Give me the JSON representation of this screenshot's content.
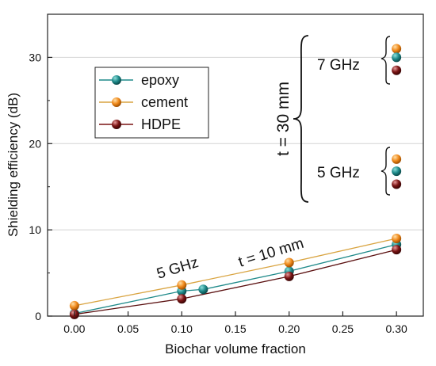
{
  "chart_data": {
    "type": "scatter",
    "title": "",
    "xlabel": "Biochar volume fraction",
    "ylabel": "Shielding efficiency (dB)",
    "xlim": [
      -0.025,
      0.325
    ],
    "ylim": [
      0,
      35
    ],
    "x_ticks": [
      "0.00",
      "0.05",
      "0.10",
      "0.15",
      "0.20",
      "0.25",
      "0.30"
    ],
    "x_tick_values": [
      0,
      0.05,
      0.1,
      0.15,
      0.2,
      0.25,
      0.3
    ],
    "y_ticks": [
      "0",
      "10",
      "20",
      "30"
    ],
    "y_tick_values": [
      0,
      10,
      20,
      30
    ],
    "grid": "horizontal",
    "legend_position": "top-left",
    "series": [
      {
        "name": "epoxy",
        "color": "#1f8a8a",
        "x": [
          0.0,
          0.1,
          0.12,
          0.2,
          0.3
        ],
        "y": [
          0.3,
          2.9,
          3.1,
          5.2,
          8.3
        ]
      },
      {
        "name": "cement",
        "color": "#f08a1c",
        "x": [
          0.0,
          0.1,
          0.2,
          0.3
        ],
        "y": [
          1.2,
          3.6,
          6.2,
          9.0
        ]
      },
      {
        "name": "HDPE",
        "color": "#7a1414",
        "x": [
          0.0,
          0.1,
          0.2,
          0.3
        ],
        "y": [
          0.2,
          2.0,
          4.6,
          7.7
        ]
      }
    ],
    "side_markers": [
      {
        "group": "7 GHz",
        "values": [
          {
            "series": "cement",
            "y": 31.0
          },
          {
            "series": "epoxy",
            "y": 30.0
          },
          {
            "series": "HDPE",
            "y": 28.5
          }
        ]
      },
      {
        "group": "5 GHz",
        "values": [
          {
            "series": "cement",
            "y": 18.2
          },
          {
            "series": "epoxy",
            "y": 16.8
          },
          {
            "series": "HDPE",
            "y": 15.3
          }
        ]
      }
    ],
    "annotations": {
      "t30": "t = 30 mm",
      "ghz7": "7 GHz",
      "ghz5_right": "5 GHz",
      "ghz5_low": "5 GHz",
      "t10": "t = 10 mm"
    }
  }
}
